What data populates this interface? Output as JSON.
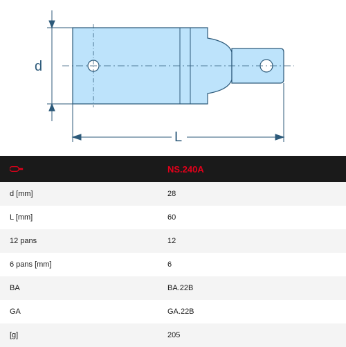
{
  "diagram": {
    "bg": "#ffffff",
    "silhouette_fill": "#bde3fb",
    "silhouette_stroke": "#2d5a7a",
    "dim_color": "#2d5a7a",
    "label_d": "d",
    "label_L": "L",
    "label_fontsize": 18,
    "label_font": "Arial"
  },
  "table": {
    "header_bg": "#1a1a1a",
    "header_accent": "#e2001a",
    "header_value": "NS.240A",
    "odd_row_bg": "#f4f4f4",
    "even_row_bg": "#ffffff",
    "rows": [
      {
        "label": "d [mm]",
        "value": "28"
      },
      {
        "label": "L [mm]",
        "value": "60"
      },
      {
        "label": "12 pans",
        "value": "12"
      },
      {
        "label": "6 pans [mm]",
        "value": "6"
      },
      {
        "label": "BA",
        "value": "BA.22B"
      },
      {
        "label": "GA",
        "value": "GA.22B"
      },
      {
        "label": "[g]",
        "value": "205"
      }
    ]
  }
}
